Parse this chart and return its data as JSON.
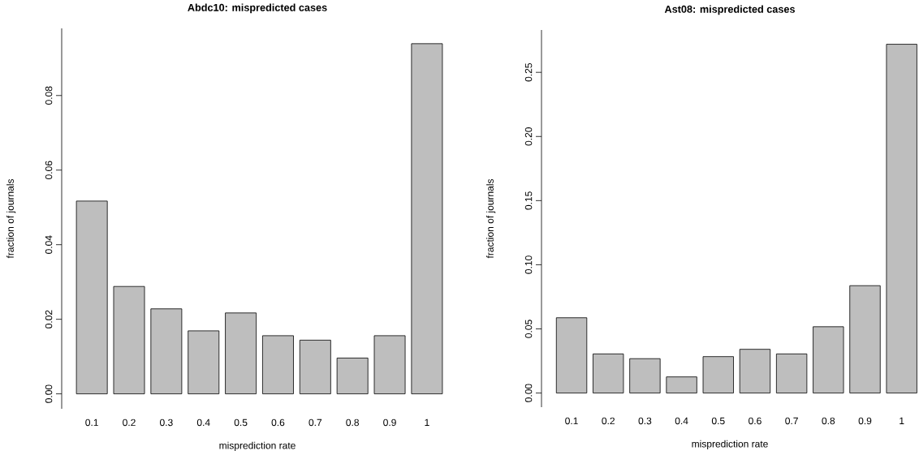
{
  "chart_data": [
    {
      "type": "bar",
      "title": "Abdc10: mispredicted cases",
      "xlabel": "misprediction rate",
      "ylabel": "fraction of journals",
      "categories": [
        "0.1",
        "0.2",
        "0.3",
        "0.4",
        "0.5",
        "0.6",
        "0.7",
        "0.8",
        "0.9",
        "1"
      ],
      "values": [
        0.0517,
        0.0288,
        0.0228,
        0.0169,
        0.0217,
        0.0156,
        0.0144,
        0.0096,
        0.0156,
        0.0939
      ],
      "color": "#bebebe",
      "ylim": [
        -0.004,
        0.098
      ],
      "yticks": [
        {
          "value": 0,
          "label": "0.00"
        },
        {
          "value": 0.02,
          "label": "0.02"
        },
        {
          "value": 0.04,
          "label": "0.04"
        },
        {
          "value": 0.06,
          "label": "0.06"
        },
        {
          "value": 0.08,
          "label": "0.08"
        }
      ]
    },
    {
      "type": "bar",
      "title": "Ast08: mispredicted cases",
      "xlabel": "misprediction rate",
      "ylabel": "fraction of journals",
      "categories": [
        "0.1",
        "0.2",
        "0.3",
        "0.4",
        "0.5",
        "0.6",
        "0.7",
        "0.8",
        "0.9",
        "1"
      ],
      "values": [
        0.0587,
        0.0305,
        0.0268,
        0.0126,
        0.0284,
        0.0341,
        0.0305,
        0.0517,
        0.0837,
        0.2719
      ],
      "color": "#bebebe",
      "ylim": [
        -0.011,
        0.283
      ],
      "yticks": [
        {
          "value": 0,
          "label": "0.00"
        },
        {
          "value": 0.05,
          "label": "0.05"
        },
        {
          "value": 0.1,
          "label": "0.10"
        },
        {
          "value": 0.15,
          "label": "0.15"
        },
        {
          "value": 0.2,
          "label": "0.20"
        },
        {
          "value": 0.25,
          "label": "0.25"
        }
      ]
    }
  ]
}
